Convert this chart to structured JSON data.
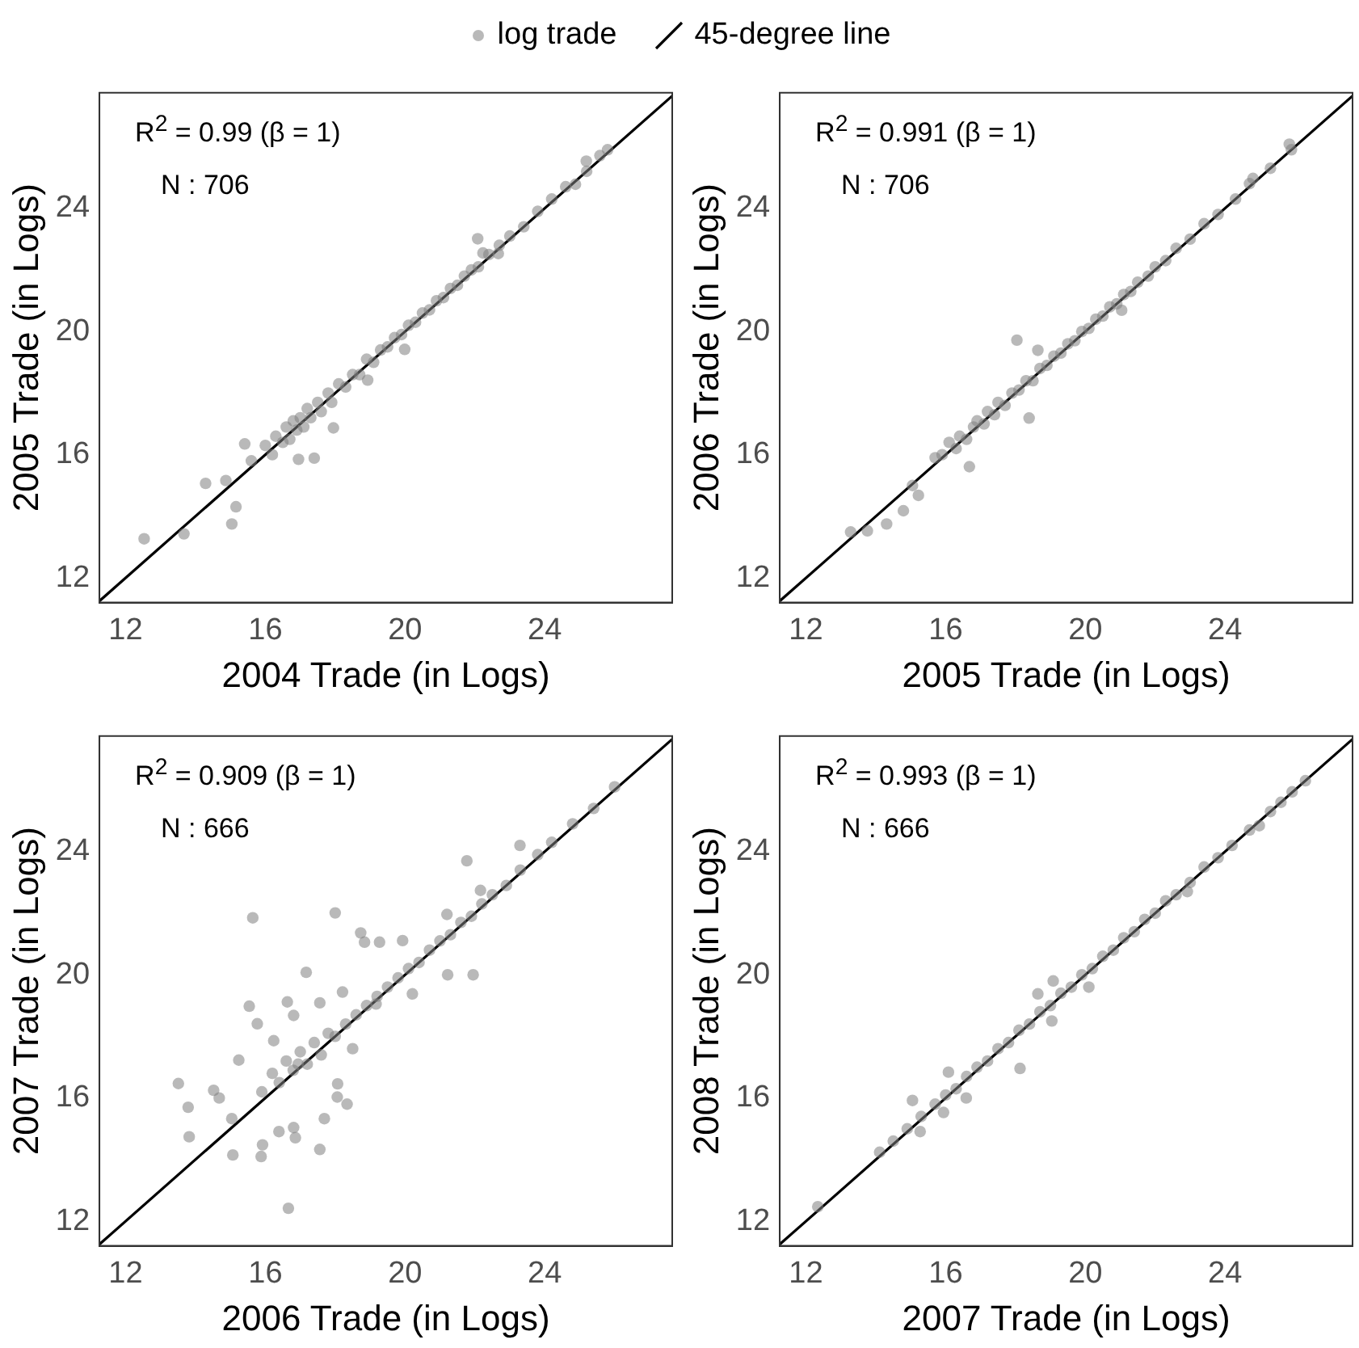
{
  "chart_data": [
    {
      "type": "scatter",
      "xlabel": "2004 Trade (in Logs)",
      "ylabel": "2005 Trade (in Logs)",
      "xlim": [
        11.25,
        27.65
      ],
      "ylim": [
        11.2,
        27.75
      ],
      "xticks": [
        12,
        16,
        20,
        24
      ],
      "yticks": [
        12,
        16,
        20,
        24
      ],
      "grid": false,
      "legend": "top",
      "marker": "circle",
      "annotations": [
        "R$^{2}$ = 0.99 (β = 1)",
        "N : 706"
      ],
      "series": [
        {
          "name": "log trade",
          "type": "scatter",
          "color": "#808080",
          "x": [
            12.53,
            13.67,
            14.29,
            14.87,
            15.04,
            15.16,
            15.41,
            16.95,
            17.4,
            17.95,
            18.93,
            19.99,
            22.08,
            22.23,
            22.67,
            24.88,
            25.19,
            25.58,
            15.6,
            16.0,
            16.2,
            16.3,
            16.5,
            16.6,
            16.7,
            16.8,
            16.9,
            17.0,
            17.1,
            17.2,
            17.3,
            17.5,
            17.6,
            17.8,
            17.9,
            18.1,
            18.3,
            18.5,
            18.7,
            18.9,
            19.1,
            19.3,
            19.5,
            19.7,
            19.9,
            20.1,
            20.3,
            20.5,
            20.7,
            20.9,
            21.1,
            21.3,
            21.5,
            21.7,
            21.9,
            22.1,
            22.4,
            22.7,
            23.0,
            23.4,
            23.8,
            24.2,
            24.6,
            25.2,
            25.8
          ],
          "values": [
            13.27,
            13.43,
            15.07,
            15.16,
            13.75,
            14.31,
            16.35,
            15.85,
            15.89,
            16.87,
            18.42,
            19.42,
            23.01,
            22.55,
            22.53,
            24.78,
            25.53,
            25.71,
            15.8,
            16.3,
            16.0,
            16.6,
            16.4,
            16.9,
            16.5,
            17.1,
            16.8,
            17.2,
            16.9,
            17.5,
            17.2,
            17.7,
            17.4,
            18.0,
            17.7,
            18.3,
            18.2,
            18.6,
            18.6,
            19.1,
            19.0,
            19.4,
            19.5,
            19.8,
            19.9,
            20.2,
            20.3,
            20.6,
            20.7,
            21.0,
            21.1,
            21.4,
            21.5,
            21.8,
            22.0,
            22.1,
            22.5,
            22.8,
            23.1,
            23.4,
            23.9,
            24.3,
            24.7,
            25.2,
            25.9
          ]
        },
        {
          "name": "45-degree line",
          "type": "line",
          "color": "#000000",
          "marker": "none",
          "line_style": "solid",
          "x": [
            11.25,
            27.65
          ],
          "values": [
            11.25,
            27.65
          ]
        }
      ]
    },
    {
      "type": "scatter",
      "xlabel": "2005 Trade (in Logs)",
      "ylabel": "2006 Trade (in Logs)",
      "xlim": [
        11.25,
        27.65
      ],
      "ylim": [
        11.2,
        27.75
      ],
      "xticks": [
        12,
        16,
        20,
        24
      ],
      "yticks": [
        12,
        16,
        20,
        24
      ],
      "grid": false,
      "marker": "circle",
      "annotations": [
        "R$^{2}$ = 0.991 (β = 1)",
        "N : 706"
      ],
      "series": [
        {
          "type": "scatter",
          "color": "#808080",
          "x": [
            18.04,
            18.64,
            18.39,
            16.68,
            14.31,
            13.28,
            13.76,
            15.05,
            15.22,
            14.79,
            21.04,
            24.8,
            25.84,
            15.7,
            15.9,
            16.1,
            16.3,
            16.4,
            16.6,
            16.8,
            16.9,
            17.1,
            17.2,
            17.4,
            17.5,
            17.7,
            17.9,
            18.1,
            18.3,
            18.5,
            18.7,
            18.9,
            19.1,
            19.3,
            19.5,
            19.7,
            19.9,
            20.1,
            20.3,
            20.5,
            20.7,
            20.9,
            21.1,
            21.3,
            21.5,
            21.8,
            22.0,
            22.3,
            22.6,
            23.0,
            23.4,
            23.8,
            24.3,
            24.7,
            25.3,
            25.9
          ],
          "values": [
            19.72,
            19.39,
            17.19,
            15.61,
            13.75,
            13.49,
            13.53,
            15.0,
            14.68,
            14.18,
            20.69,
            24.97,
            26.08,
            15.9,
            16.0,
            16.4,
            16.2,
            16.6,
            16.5,
            16.9,
            17.1,
            17.0,
            17.4,
            17.3,
            17.7,
            17.6,
            18.0,
            18.1,
            18.4,
            18.4,
            18.8,
            18.9,
            19.2,
            19.3,
            19.6,
            19.7,
            20.0,
            20.1,
            20.4,
            20.5,
            20.8,
            20.9,
            21.2,
            21.3,
            21.6,
            21.8,
            22.1,
            22.3,
            22.7,
            23.0,
            23.5,
            23.8,
            24.3,
            24.8,
            25.3,
            25.9
          ]
        },
        {
          "type": "line",
          "color": "#000000",
          "marker": "none",
          "line_style": "solid",
          "x": [
            11.25,
            27.65
          ],
          "values": [
            11.25,
            27.65
          ]
        }
      ]
    },
    {
      "type": "scatter",
      "xlabel": "2006 Trade (in Logs)",
      "ylabel": "2007 Trade (in Logs)",
      "xlim": [
        11.25,
        27.65
      ],
      "ylim": [
        11.2,
        27.75
      ],
      "xticks": [
        12,
        16,
        20,
        24
      ],
      "yticks": [
        12,
        16,
        20,
        24
      ],
      "grid": false,
      "marker": "circle",
      "annotations": [
        "R$^{2}$ = 0.909 (β = 1)",
        "N : 666"
      ],
      "series": [
        {
          "type": "scatter",
          "color": "#808080",
          "x": [
            15.64,
            18.0,
            21.77,
            17.17,
            15.54,
            15.77,
            16.63,
            16.81,
            17.56,
            13.51,
            13.79,
            13.82,
            14.52,
            14.68,
            15.04,
            15.07,
            15.88,
            15.92,
            16.39,
            16.66,
            16.81,
            16.86,
            17.56,
            17.69,
            18.06,
            18.34,
            18.07,
            15.24,
            18.73,
            18.84,
            19.27,
            19.93,
            21.22,
            21.95,
            21.2,
            22.16,
            23.29,
            20.21,
            19.17,
            18.21,
            18.5,
            16.94,
            16.24,
            15.9,
            16.2,
            16.4,
            16.6,
            16.8,
            17.0,
            17.2,
            17.4,
            17.6,
            17.8,
            18.0,
            18.3,
            18.6,
            18.9,
            19.2,
            19.5,
            19.8,
            20.1,
            20.4,
            20.7,
            21.0,
            21.3,
            21.6,
            21.9,
            22.2,
            22.5,
            22.9,
            23.3,
            23.8,
            24.2,
            24.8,
            25.4,
            26.0
          ],
          "values": [
            21.85,
            22.01,
            23.7,
            20.08,
            18.98,
            18.41,
            19.12,
            18.68,
            19.09,
            16.47,
            15.7,
            14.74,
            16.25,
            16.0,
            15.33,
            14.15,
            14.1,
            14.48,
            14.91,
            12.42,
            15.04,
            14.71,
            14.33,
            15.33,
            16.03,
            15.8,
            16.46,
            17.23,
            21.36,
            21.06,
            21.06,
            21.11,
            20.0,
            20.0,
            21.96,
            22.74,
            24.2,
            19.38,
            19.05,
            19.44,
            17.6,
            17.1,
            17.86,
            16.2,
            16.8,
            16.5,
            17.2,
            16.9,
            17.5,
            17.1,
            17.8,
            17.4,
            18.1,
            18.0,
            18.4,
            18.7,
            19.0,
            19.3,
            19.6,
            19.9,
            20.2,
            20.4,
            20.8,
            21.1,
            21.3,
            21.7,
            21.9,
            22.3,
            22.6,
            22.9,
            23.4,
            23.9,
            24.3,
            24.9,
            25.4,
            26.1
          ]
        },
        {
          "type": "line",
          "color": "#000000",
          "marker": "none",
          "line_style": "solid",
          "x": [
            11.25,
            27.65
          ],
          "values": [
            11.25,
            27.65
          ]
        }
      ]
    },
    {
      "type": "scatter",
      "xlabel": "2007 Trade (in Logs)",
      "ylabel": "2008 Trade (in Logs)",
      "xlim": [
        11.25,
        27.65
      ],
      "ylim": [
        11.2,
        27.75
      ],
      "xticks": [
        12,
        16,
        20,
        24
      ],
      "yticks": [
        12,
        16,
        20,
        24
      ],
      "grid": false,
      "marker": "circle",
      "annotations": [
        "R$^{2}$ = 0.993 (β = 1)",
        "N : 666"
      ],
      "series": [
        {
          "type": "scatter",
          "color": "#808080",
          "x": [
            12.34,
            14.11,
            15.05,
            15.27,
            15.94,
            16.59,
            16.08,
            18.13,
            19.04,
            19.08,
            18.64,
            20.1,
            22.92,
            24.98,
            25.92,
            14.5,
            14.9,
            15.3,
            15.7,
            16.0,
            16.3,
            16.6,
            16.9,
            17.2,
            17.5,
            17.8,
            18.1,
            18.4,
            18.7,
            19.0,
            19.3,
            19.6,
            19.9,
            20.2,
            20.5,
            20.8,
            21.1,
            21.4,
            21.7,
            22.0,
            22.3,
            22.6,
            23.0,
            23.4,
            23.8,
            24.2,
            24.7,
            25.3,
            25.6,
            26.3
          ],
          "values": [
            12.47,
            14.24,
            15.92,
            14.91,
            15.53,
            16.0,
            16.84,
            16.96,
            18.5,
            19.8,
            19.38,
            19.6,
            22.7,
            24.84,
            25.94,
            14.6,
            15.0,
            15.4,
            15.8,
            16.1,
            16.3,
            16.7,
            17.0,
            17.2,
            17.6,
            17.8,
            18.2,
            18.4,
            18.8,
            19.0,
            19.4,
            19.6,
            20.0,
            20.2,
            20.6,
            20.8,
            21.2,
            21.4,
            21.8,
            22.0,
            22.4,
            22.6,
            23.0,
            23.5,
            23.8,
            24.2,
            24.7,
            25.3,
            25.6,
            26.3
          ]
        },
        {
          "type": "line",
          "color": "#000000",
          "marker": "none",
          "line_style": "solid",
          "x": [
            11.25,
            27.65
          ],
          "values": [
            11.25,
            27.65
          ]
        }
      ]
    }
  ]
}
